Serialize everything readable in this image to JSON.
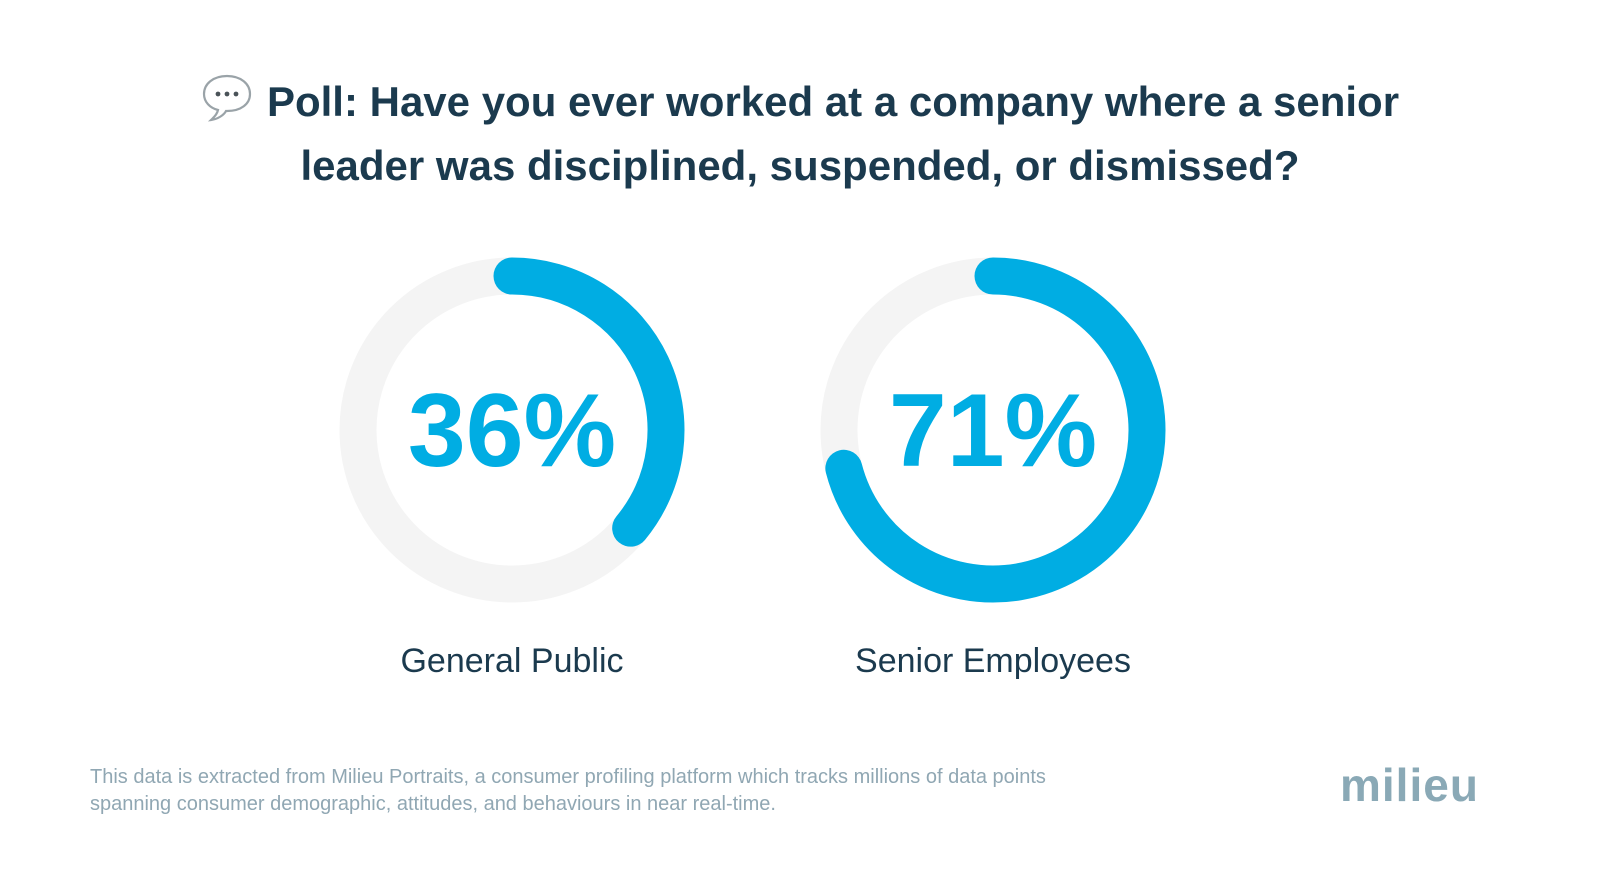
{
  "title": {
    "line1": "Poll: Have you ever worked at a company where a senior",
    "line2": "leader was disciplined, suspended, or dismissed?",
    "icon": "speech-bubble-icon"
  },
  "chart_data": {
    "type": "donut",
    "unit": "%",
    "segments": [
      {
        "name": "General Public",
        "value": 36,
        "label": "36%"
      },
      {
        "name": "Senior Employees",
        "value": 71,
        "label": "71%"
      }
    ],
    "colors": {
      "fill": "#00ade3",
      "track": "#f4f4f4",
      "label": "#1b3a4e"
    }
  },
  "footnote": {
    "line1": "This data is extracted from Milieu Portraits, a consumer profiling platform which tracks millions of data points",
    "line2": "spanning consumer demographic, attitudes, and behaviours in near real-time."
  },
  "logo": {
    "text": "milieu",
    "color": "#8aa9b6"
  }
}
